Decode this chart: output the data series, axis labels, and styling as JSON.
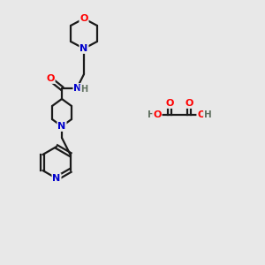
{
  "bg_color": "#e8e8e8",
  "atom_colors": {
    "C": "#000000",
    "N": "#0000cc",
    "O": "#ff0000",
    "H": "#607060"
  },
  "bond_color": "#1a1a1a",
  "bond_width": 1.6
}
